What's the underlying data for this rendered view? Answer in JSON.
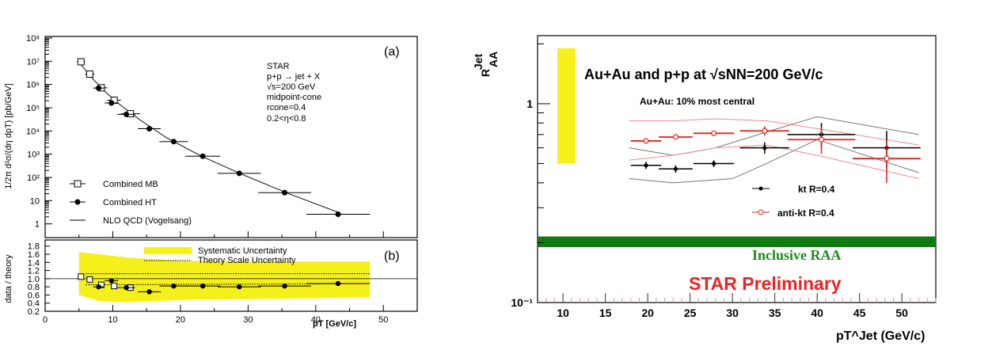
{
  "chart_data": [
    {
      "type": "scatter",
      "panel": "(a)",
      "ylabel": "1/2π d²σ/(dη dpT) [pb/GeV]",
      "yscale": "log",
      "ylim": [
        0.3,
        100000000
      ],
      "xlim": [
        0,
        55
      ],
      "y_tick_labels": [
        "1",
        "10",
        "10²",
        "10³",
        "10⁴",
        "10⁵",
        "10⁶",
        "10⁷",
        "10⁸"
      ],
      "annotation": [
        "STAR",
        "p+p → jet + X",
        "√s=200 GeV",
        "midpoint-cone",
        "rcone=0.4",
        "0.2<η<0.8"
      ],
      "series": [
        {
          "name": "Combined MB",
          "marker": "open-square",
          "x": [
            5.3,
            6.6,
            8.3,
            10.2,
            12.6
          ],
          "y": [
            9500000,
            2800000,
            720000,
            210000,
            55000
          ],
          "xerr": [
            0.6,
            0.7,
            0.9,
            1.0,
            1.4
          ]
        },
        {
          "name": "Combined HT",
          "marker": "filled-circle",
          "x": [
            7.9,
            9.8,
            12.0,
            15.4,
            19.0,
            23.3,
            28.7,
            35.4,
            43.3
          ],
          "y": [
            700000,
            160000,
            52000,
            12500,
            3500,
            820,
            150,
            22,
            2.6
          ],
          "xerr": [
            0.8,
            1.0,
            1.3,
            1.7,
            2.1,
            2.6,
            3.2,
            3.9,
            4.7
          ]
        },
        {
          "name": "NLO QCD (Vogelsang)",
          "marker": "line",
          "x": [
            5,
            7,
            9,
            11,
            14,
            18,
            23,
            29,
            36,
            43.5
          ],
          "y": [
            9000000,
            1800000,
            450000,
            140000,
            30000,
            5000,
            850,
            140,
            20,
            3
          ]
        }
      ]
    },
    {
      "type": "scatter",
      "panel": "(b)",
      "xlabel": "pT [GeV/c]",
      "ylabel": "data / theory",
      "xlim": [
        0,
        55
      ],
      "ylim": [
        0.2,
        1.95
      ],
      "x_ticks": [
        0,
        10,
        20,
        30,
        40,
        50
      ],
      "y_ticks": [
        "0.2",
        "0.4",
        "0.6",
        "0.8",
        "1.0",
        "1.2",
        "1.4",
        "1.6",
        "1.8"
      ],
      "legend": [
        "Systematic Uncertainty",
        "Theory Scale Uncertainty"
      ],
      "series": [
        {
          "name": "Combined MB",
          "marker": "open-square",
          "x": [
            5.3,
            6.6,
            8.3,
            10.2,
            12.6
          ],
          "y": [
            1.05,
            0.98,
            0.85,
            0.82,
            0.78
          ]
        },
        {
          "name": "Combined HT",
          "marker": "filled-circle",
          "x": [
            7.9,
            9.8,
            12.0,
            15.4,
            19.0,
            23.3,
            28.7,
            35.4,
            43.3
          ],
          "y": [
            0.8,
            0.95,
            0.78,
            0.68,
            0.82,
            0.82,
            0.8,
            0.82,
            0.88
          ]
        },
        {
          "name": "Systematic Uncertainty band",
          "x": [
            5,
            8,
            12,
            20,
            30,
            40,
            48
          ],
          "upper": [
            1.65,
            1.6,
            1.52,
            1.44,
            1.42,
            1.42,
            1.42
          ],
          "lower": [
            0.6,
            0.45,
            0.42,
            0.48,
            0.5,
            0.52,
            0.55
          ]
        }
      ]
    },
    {
      "type": "scatter",
      "ylabel": "R_AA^Jet",
      "xlabel": "pT^Jet (GeV/c)",
      "yscale": "log",
      "ylim": [
        0.1,
        2.2
      ],
      "xlim": [
        7,
        54
      ],
      "x_ticks": [
        10,
        15,
        20,
        25,
        30,
        35,
        40,
        45,
        50
      ],
      "y_tick_labels": [
        "1",
        "10⁻¹"
      ],
      "title": "Au+Au and p+p at √sNN=200 GeV/c",
      "subtitle": "Au+Au: 10% most central",
      "inclusive_band_label": "Inclusive RAA",
      "inclusive_raa": 0.2,
      "preliminary": "STAR Preliminary",
      "series": [
        {
          "name": "kt R=0.4",
          "marker": "filled-circle",
          "color": "#000000",
          "x": [
            19.8,
            23.3,
            27.8,
            33.8,
            40.5,
            48.2
          ],
          "y": [
            0.49,
            0.47,
            0.5,
            0.6,
            0.7,
            0.6
          ],
          "xerr": [
            1.8,
            2.0,
            2.4,
            2.9,
            4.0,
            4.0
          ]
        },
        {
          "name": "anti-kt R=0.4",
          "marker": "open-circle",
          "color": "#e8201e",
          "x": [
            19.8,
            23.3,
            27.8,
            33.8,
            40.5,
            48.2
          ],
          "y": [
            0.65,
            0.68,
            0.71,
            0.73,
            0.66,
            0.53
          ],
          "xerr": [
            1.8,
            2.0,
            2.4,
            2.9,
            4.0,
            4.0
          ]
        }
      ]
    }
  ]
}
